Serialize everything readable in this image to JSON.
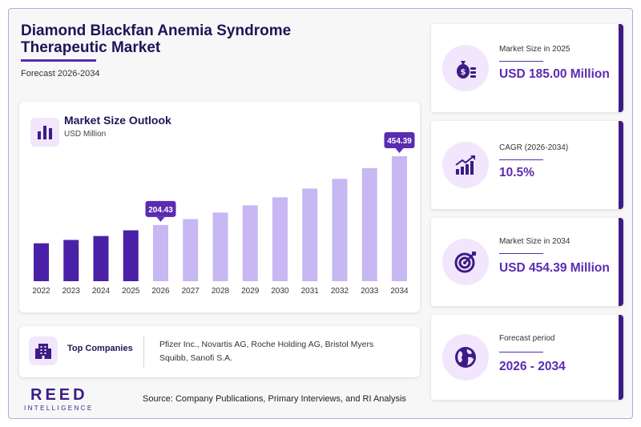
{
  "header": {
    "title": "Diamond Blackfan Anemia Syndrome Therapeutic Market",
    "subtitle": "Forecast 2026-2034"
  },
  "chart_panel": {
    "title": "Market Size Outlook",
    "unit": "USD Million"
  },
  "chart_data": {
    "type": "bar",
    "categories": [
      "2022",
      "2023",
      "2024",
      "2025",
      "2026",
      "2027",
      "2028",
      "2029",
      "2030",
      "2031",
      "2032",
      "2033",
      "2034"
    ],
    "values": [
      137.8,
      150.0,
      164.2,
      185.0,
      204.43,
      225.9,
      249.6,
      275.8,
      304.8,
      336.8,
      372.1,
      411.2,
      454.39
    ],
    "historical_count": 4,
    "colors": {
      "historical": "#4a21a6",
      "forecast": "#c7b7f2",
      "callout": "#5b2bb1"
    },
    "callouts": [
      {
        "index": 4,
        "label": "204.43"
      },
      {
        "index": 12,
        "label": "454.39"
      }
    ],
    "ylabel": "USD Million",
    "grid": false
  },
  "companies": {
    "label": "Top Companies",
    "text": "Pfizer Inc., Novartis AG, Roche Holding AG, Bristol Myers Squibb, Sanofi S.A."
  },
  "stats": [
    {
      "label": "Market Size in 2025",
      "value": "USD 185.00 Million",
      "icon": "money-bag-icon"
    },
    {
      "label": "CAGR (2026-2034)",
      "value": "10.5%",
      "icon": "growth-chart-icon"
    },
    {
      "label": "Market Size in 2034",
      "value": "USD 454.39 Million",
      "icon": "target-icon"
    },
    {
      "label": "Forecast period",
      "value": "2026 - 2034",
      "icon": "globe-icon"
    }
  ],
  "footer": {
    "logo_main": "REED",
    "logo_sub": "INTELLIGENCE",
    "source": "Source: Company Publications, Primary Interviews, and RI Analysis"
  }
}
